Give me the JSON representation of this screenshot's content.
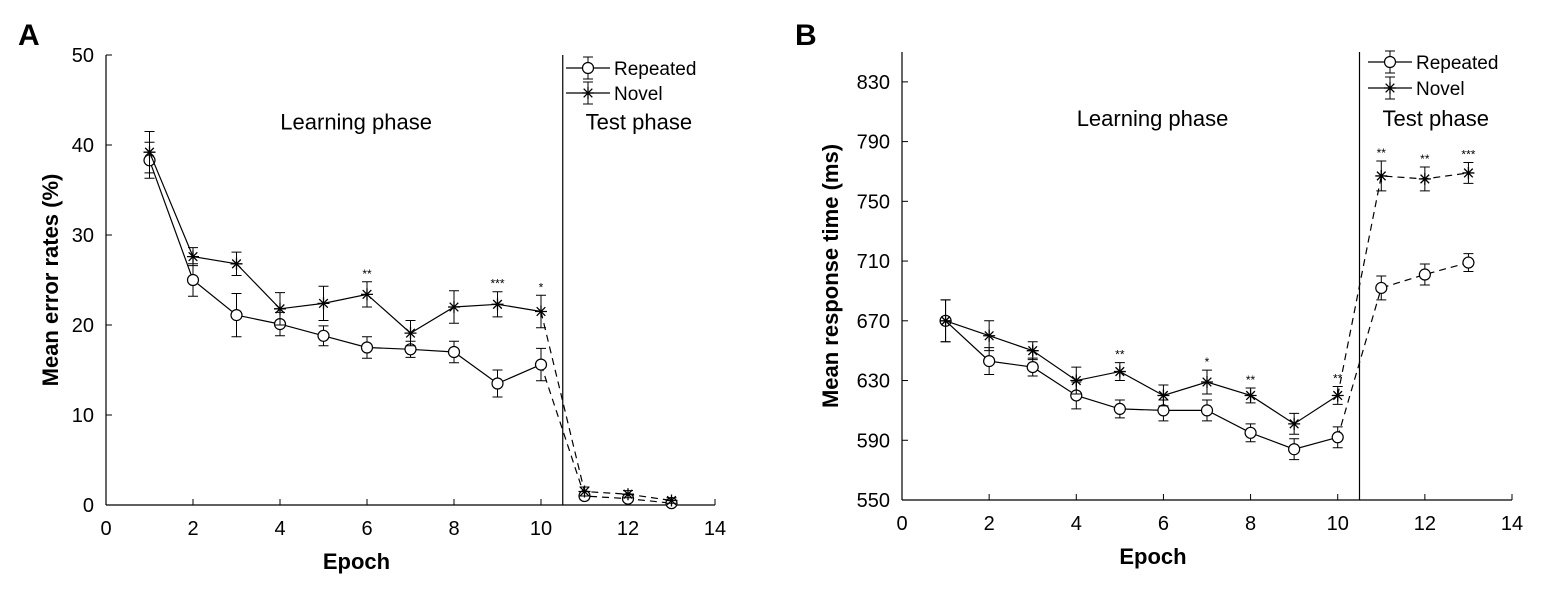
{
  "chart_data": [
    {
      "panel": "A",
      "type": "line",
      "xlabel": "Epoch",
      "ylabel": "Mean error rates (%)",
      "xlim": [
        0,
        14
      ],
      "ylim": [
        0,
        50
      ],
      "xticks": [
        0,
        2,
        4,
        6,
        8,
        10,
        12,
        14
      ],
      "yticks": [
        0,
        10,
        20,
        30,
        40,
        50
      ],
      "phase_boundary": 10.5,
      "phase_labels": {
        "learning": "Learning phase",
        "test": "Test phase"
      },
      "legend": {
        "position": "top-right",
        "entries": [
          "Repeated",
          "Novel"
        ]
      },
      "series": [
        {
          "name": "Repeated",
          "marker": "circle",
          "x": [
            1,
            2,
            3,
            4,
            5,
            6,
            7,
            8,
            9,
            10,
            11,
            12,
            13
          ],
          "values": [
            38.3,
            25.0,
            21.1,
            20.1,
            18.8,
            17.5,
            17.3,
            17.0,
            13.5,
            15.6,
            1.0,
            0.7,
            0.2
          ],
          "errors": [
            2.0,
            1.8,
            2.4,
            1.3,
            1.1,
            1.2,
            0.9,
            1.2,
            1.5,
            1.8,
            0.4,
            0.3,
            0.2
          ]
        },
        {
          "name": "Novel",
          "marker": "star",
          "x": [
            1,
            2,
            3,
            4,
            5,
            6,
            7,
            8,
            9,
            10,
            11,
            12,
            13
          ],
          "values": [
            39.2,
            27.6,
            26.8,
            21.8,
            22.4,
            23.4,
            19.1,
            22.0,
            22.3,
            21.5,
            1.5,
            1.2,
            0.5
          ],
          "errors": [
            2.3,
            1.0,
            1.3,
            1.8,
            1.9,
            1.4,
            1.4,
            1.8,
            1.4,
            1.8,
            0.5,
            0.4,
            0.3
          ]
        }
      ],
      "annotations": [
        {
          "x": 6,
          "text": "**"
        },
        {
          "x": 9,
          "text": "***"
        },
        {
          "x": 10,
          "text": "*"
        }
      ]
    },
    {
      "panel": "B",
      "type": "line",
      "xlabel": "Epoch",
      "ylabel": "Mean response time (ms)",
      "xlim": [
        0,
        14
      ],
      "ylim": [
        550,
        850
      ],
      "xticks": [
        0,
        2,
        4,
        6,
        8,
        10,
        12,
        14
      ],
      "yticks": [
        550,
        590,
        630,
        670,
        710,
        750,
        790,
        830
      ],
      "phase_boundary": 10.5,
      "phase_labels": {
        "learning": "Learning phase",
        "test": "Test phase"
      },
      "legend": {
        "position": "top-right",
        "entries": [
          "Repeated",
          "Novel"
        ]
      },
      "series": [
        {
          "name": "Repeated",
          "marker": "circle",
          "x": [
            1,
            2,
            3,
            4,
            5,
            6,
            7,
            8,
            9,
            10,
            11,
            12,
            13
          ],
          "values": [
            670,
            643,
            639,
            620,
            611,
            610,
            610,
            595,
            584,
            592,
            692,
            701,
            709
          ],
          "errors": [
            14,
            9,
            6,
            9,
            6,
            7,
            7,
            6,
            7,
            7,
            8,
            7,
            6
          ]
        },
        {
          "name": "Novel",
          "marker": "star",
          "x": [
            1,
            2,
            3,
            4,
            5,
            6,
            7,
            8,
            9,
            10,
            11,
            12,
            13
          ],
          "values": [
            670,
            660,
            650,
            630,
            636,
            620,
            629,
            620,
            601,
            620,
            767,
            765,
            769
          ],
          "errors": [
            14,
            10,
            6,
            9,
            6,
            7,
            8,
            5,
            7,
            6,
            10,
            8,
            7
          ]
        }
      ],
      "annotations": [
        {
          "x": 5,
          "text": "**"
        },
        {
          "x": 7,
          "text": "*"
        },
        {
          "x": 8,
          "text": "**"
        },
        {
          "x": 10,
          "text": "**"
        },
        {
          "x": 11,
          "text": "**"
        },
        {
          "x": 12,
          "text": "**"
        },
        {
          "x": 13,
          "text": "***"
        }
      ]
    }
  ]
}
